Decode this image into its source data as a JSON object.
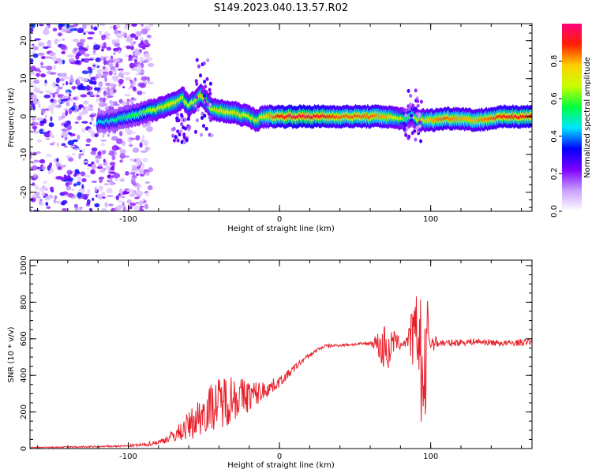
{
  "title": "S149.2023.040.13.57.R02",
  "chart_data": [
    {
      "type": "heatmap",
      "title": "S149.2023.040.13.57.R02",
      "xlabel": "Height of straight line (km)",
      "ylabel": "Frequency (Hz)",
      "xlim": [
        -165,
        167
      ],
      "ylim": [
        -25,
        24.5
      ],
      "xticks": [
        -100,
        0,
        100
      ],
      "yticks": [
        -20,
        -10,
        0,
        10,
        20
      ],
      "colorbar": {
        "label": "Normalized spectral amplitude",
        "range": [
          0,
          1
        ],
        "ticks": [
          "0.0",
          "0.2",
          "0.4",
          "0.6",
          "0.8"
        ],
        "colors": [
          "#ffffff",
          "#c9a0ff",
          "#7f00ff",
          "#0000ff",
          "#00e5ff",
          "#00ff40",
          "#c8ff00",
          "#ffd000",
          "#ff2000",
          "#ff007f"
        ]
      },
      "ridge": {
        "description_x": [
          -120,
          -110,
          -100,
          -90,
          -80,
          -70,
          -64,
          -60,
          -56,
          -52,
          -48,
          -45,
          -40,
          -30,
          -20,
          -15,
          -10,
          0,
          10,
          20,
          30,
          40,
          50,
          60,
          70,
          80,
          84,
          88,
          92,
          100,
          110,
          120,
          130,
          140,
          150,
          160,
          167
        ],
        "frequency": [
          -1.5,
          -1,
          0,
          1,
          2,
          3.5,
          5,
          3,
          4,
          5.5,
          4,
          2,
          1.5,
          1,
          0,
          -1,
          0,
          0,
          0,
          0,
          0,
          0,
          0,
          0,
          0,
          -0.5,
          -1,
          0.5,
          -1,
          -1,
          -0.5,
          -0.5,
          -1,
          -0.5,
          0,
          0,
          0
        ],
        "amplitude": [
          0.45,
          0.5,
          0.55,
          0.6,
          0.7,
          0.75,
          0.7,
          0.65,
          0.7,
          0.75,
          0.7,
          0.7,
          0.75,
          0.75,
          0.7,
          0.7,
          0.75,
          0.9,
          0.95,
          0.95,
          0.9,
          0.85,
          0.85,
          0.85,
          0.8,
          0.7,
          0.55,
          0.6,
          0.7,
          0.8,
          0.85,
          0.8,
          0.8,
          0.85,
          0.9,
          0.9,
          0.9
        ]
      }
    },
    {
      "type": "line",
      "xlabel": "Height of straight line (km)",
      "ylabel": "SNR (10 * v/v)",
      "xlim": [
        -165,
        167
      ],
      "ylim": [
        0,
        1030
      ],
      "xticks": [
        -100,
        0,
        100
      ],
      "yticks": [
        0,
        200,
        400,
        600,
        800,
        1000
      ],
      "series": [
        {
          "color": "#e8202a",
          "x": [
            -165,
            -140,
            -120,
            -100,
            -90,
            -80,
            -75,
            -70,
            -65,
            -60,
            -55,
            -50,
            -45,
            -40,
            -35,
            -30,
            -25,
            -20,
            -15,
            -10,
            -5,
            0,
            5,
            10,
            15,
            20,
            25,
            30,
            40,
            50,
            60,
            65,
            68,
            70,
            72,
            75,
            80,
            85,
            88,
            90,
            92,
            94,
            96,
            98,
            100,
            105,
            110,
            120,
            130,
            140,
            150,
            160,
            167
          ],
          "y": [
            5,
            8,
            10,
            15,
            20,
            35,
            50,
            70,
            95,
            125,
            160,
            200,
            230,
            250,
            270,
            285,
            280,
            290,
            300,
            320,
            340,
            365,
            400,
            440,
            480,
            510,
            540,
            560,
            565,
            570,
            575,
            580,
            520,
            600,
            500,
            590,
            570,
            590,
            620,
            560,
            700,
            400,
            300,
            650,
            580,
            580,
            575,
            580,
            585,
            580,
            575,
            580,
            585
          ],
          "noise": [
            3,
            4,
            5,
            6,
            10,
            15,
            20,
            35,
            55,
            80,
            100,
            120,
            130,
            140,
            150,
            130,
            110,
            90,
            70,
            50,
            40,
            30,
            25,
            20,
            15,
            12,
            10,
            10,
            8,
            8,
            10,
            60,
            130,
            120,
            110,
            70,
            30,
            40,
            180,
            250,
            300,
            380,
            350,
            200,
            60,
            25,
            20,
            18,
            18,
            18,
            18,
            18,
            18
          ]
        }
      ]
    }
  ]
}
